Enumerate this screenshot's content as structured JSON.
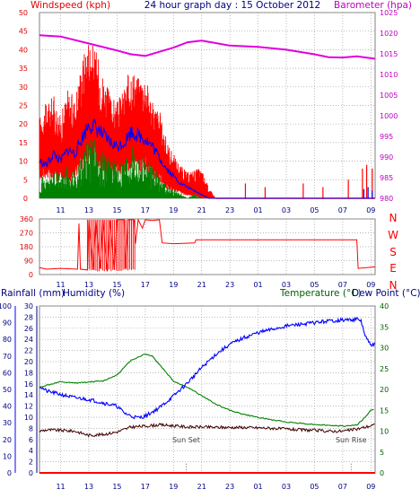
{
  "title": "24 hour graph day : 15 October 2012",
  "chart_data": [
    {
      "id": "wind",
      "type": "line",
      "left_label": "Windspeed (kph)",
      "right_label": "Barometer (hpa)",
      "colors": {
        "gust": "#ff0000",
        "wind": "#008000",
        "avg": "#0000ff",
        "baro": "#e000e0"
      },
      "y_left_range": [
        0,
        50
      ],
      "y_left_ticks": [
        "0",
        "5",
        "10",
        "15",
        "20",
        "25",
        "30",
        "35",
        "40",
        "45",
        "50"
      ],
      "y_right_range": [
        980,
        1025
      ],
      "y_right_ticks": [
        "980",
        "985",
        "990",
        "995",
        "1000",
        "1005",
        "1010",
        "1015",
        "1020",
        "1025"
      ],
      "x_ticks": [
        "11",
        "13",
        "15",
        "17",
        "19",
        "21",
        "23",
        "01",
        "03",
        "05",
        "07",
        "09"
      ],
      "x_range_hours": [
        9.5,
        33.3
      ],
      "gust_max": [
        [
          9.5,
          22
        ],
        [
          10,
          26
        ],
        [
          10.5,
          28
        ],
        [
          11,
          22
        ],
        [
          11.5,
          30
        ],
        [
          12,
          27
        ],
        [
          12.5,
          38
        ],
        [
          13,
          44
        ],
        [
          13.5,
          40
        ],
        [
          14,
          34
        ],
        [
          14.5,
          28
        ],
        [
          15,
          26
        ],
        [
          15.5,
          30
        ],
        [
          16,
          36
        ],
        [
          16.5,
          33
        ],
        [
          17,
          34
        ],
        [
          17.5,
          26
        ],
        [
          18,
          24
        ],
        [
          18.5,
          16
        ],
        [
          19,
          12
        ],
        [
          19.5,
          9
        ],
        [
          20,
          7
        ],
        [
          20.5,
          8
        ],
        [
          21,
          8
        ],
        [
          21.5,
          3
        ],
        [
          22,
          0
        ],
        [
          33.3,
          0
        ]
      ],
      "gust_min": [
        [
          9.5,
          8
        ],
        [
          10,
          9
        ],
        [
          10.5,
          7
        ],
        [
          11,
          8
        ],
        [
          11.5,
          6
        ],
        [
          12,
          9
        ],
        [
          12.5,
          12
        ],
        [
          13,
          16
        ],
        [
          13.5,
          14
        ],
        [
          14,
          11
        ],
        [
          14.5,
          10
        ],
        [
          15,
          9
        ],
        [
          15.5,
          10
        ],
        [
          16,
          13
        ],
        [
          16.5,
          11
        ],
        [
          17,
          12
        ],
        [
          17.5,
          9
        ],
        [
          18,
          7
        ],
        [
          18.5,
          4
        ],
        [
          19,
          3
        ],
        [
          19.5,
          2
        ],
        [
          20,
          1
        ],
        [
          20.5,
          1
        ],
        [
          21,
          0
        ],
        [
          22,
          0
        ],
        [
          33.3,
          0
        ]
      ],
      "avg_wind": [
        [
          9.5,
          10
        ],
        [
          10,
          9
        ],
        [
          10.5,
          12
        ],
        [
          11,
          10
        ],
        [
          11.5,
          13
        ],
        [
          12,
          12
        ],
        [
          12.5,
          16
        ],
        [
          13,
          20
        ],
        [
          13.5,
          19
        ],
        [
          14,
          17
        ],
        [
          14.5,
          15
        ],
        [
          15,
          14
        ],
        [
          15.5,
          15
        ],
        [
          16,
          18
        ],
        [
          16.5,
          17
        ],
        [
          17,
          16
        ],
        [
          17.5,
          14
        ],
        [
          18,
          11
        ],
        [
          18.5,
          8
        ],
        [
          19,
          6
        ],
        [
          19.5,
          4
        ],
        [
          20,
          3
        ],
        [
          20.5,
          2
        ],
        [
          21,
          1
        ],
        [
          21.5,
          0
        ],
        [
          22,
          0
        ],
        [
          33.3,
          0
        ]
      ],
      "wind": [
        [
          9.5,
          5
        ],
        [
          10,
          4
        ],
        [
          10.5,
          6
        ],
        [
          11,
          5
        ],
        [
          11.5,
          7
        ],
        [
          12,
          6
        ],
        [
          12.5,
          9
        ],
        [
          13,
          13
        ],
        [
          13.5,
          12
        ],
        [
          14,
          10
        ],
        [
          14.5,
          9
        ],
        [
          15,
          8
        ],
        [
          15.5,
          9
        ],
        [
          16,
          12
        ],
        [
          16.5,
          10
        ],
        [
          17,
          9
        ],
        [
          17.5,
          7
        ],
        [
          18,
          5
        ],
        [
          18.5,
          3
        ],
        [
          19,
          2
        ],
        [
          19.5,
          1
        ],
        [
          20,
          0
        ],
        [
          20.5,
          1
        ],
        [
          21,
          0
        ],
        [
          33.3,
          0
        ]
      ],
      "late_gusts": [
        [
          24.1,
          4
        ],
        [
          25.5,
          3
        ],
        [
          28.2,
          4
        ],
        [
          29.6,
          3
        ],
        [
          31.4,
          5
        ],
        [
          32.4,
          8
        ],
        [
          32.7,
          9
        ],
        [
          33.1,
          8
        ]
      ],
      "barometer": [
        [
          9.5,
          1019.5
        ],
        [
          11,
          1019.2
        ],
        [
          13,
          1017.5
        ],
        [
          15,
          1015.8
        ],
        [
          16,
          1014.9
        ],
        [
          17,
          1014.5
        ],
        [
          18,
          1015.5
        ],
        [
          19,
          1016.5
        ],
        [
          20,
          1017.8
        ],
        [
          21,
          1018.2
        ],
        [
          22,
          1017.6
        ],
        [
          23,
          1017.0
        ],
        [
          25,
          1016.7
        ],
        [
          27,
          1016.0
        ],
        [
          29,
          1014.9
        ],
        [
          30,
          1014.2
        ],
        [
          31,
          1014.1
        ],
        [
          32,
          1014.4
        ],
        [
          33.3,
          1013.8
        ]
      ]
    },
    {
      "id": "direction",
      "type": "line",
      "left_label": "",
      "right_label": "",
      "compass": [
        "N",
        "W",
        "S",
        "E",
        "N"
      ],
      "compass_color": "#ff0000",
      "y_range": [
        0,
        360
      ],
      "y_ticks": [
        "0",
        "90",
        "180",
        "270",
        "360"
      ],
      "x_ticks": [
        "11",
        "13",
        "15",
        "17",
        "19",
        "21",
        "23",
        "01",
        "03",
        "05",
        "07",
        "09"
      ],
      "color": "#ff0000",
      "values": [
        [
          9.5,
          45
        ],
        [
          10,
          35
        ],
        [
          11,
          40
        ],
        [
          12.2,
          35
        ],
        [
          12.3,
          330
        ],
        [
          12.4,
          35
        ],
        [
          12.9,
          30
        ],
        [
          13.0,
          350
        ],
        [
          13.3,
          30
        ],
        [
          13.5,
          350
        ],
        [
          13.8,
          40
        ],
        [
          14.0,
          355
        ],
        [
          14.3,
          20
        ],
        [
          14.5,
          350
        ],
        [
          14.8,
          30
        ],
        [
          15,
          355
        ],
        [
          15.5,
          355
        ],
        [
          15.6,
          40
        ],
        [
          15.8,
          355
        ],
        [
          16.2,
          355
        ],
        [
          16.3,
          200
        ],
        [
          16.5,
          355
        ],
        [
          16.8,
          300
        ],
        [
          17,
          355
        ],
        [
          17.5,
          350
        ],
        [
          18,
          355
        ],
        [
          18.2,
          205
        ],
        [
          19,
          200
        ],
        [
          20.5,
          205
        ],
        [
          20.6,
          225
        ],
        [
          32.0,
          225
        ],
        [
          32.1,
          40
        ],
        [
          33.3,
          50
        ]
      ]
    },
    {
      "id": "rain_hum_temp",
      "type": "line",
      "left_labels": [
        "Rainfall (mm)",
        "Humidity (%)"
      ],
      "right_labels": [
        "Temperature (°C)",
        "Dew Point (°C)"
      ],
      "colors": {
        "humidity": "#0000ff",
        "temperature": "#008000",
        "dewpoint": "#400000",
        "rain": "#ff0000"
      },
      "y_hum_range": [
        0,
        100
      ],
      "y_hum_ticks": [
        "0",
        "10",
        "20",
        "30",
        "40",
        "50",
        "60",
        "70",
        "80",
        "90",
        "100"
      ],
      "y_rain_range": [
        0,
        30
      ],
      "y_rain_ticks": [
        "0",
        "2",
        "4",
        "6",
        "8",
        "10",
        "12",
        "14",
        "16",
        "18",
        "20",
        "22",
        "24",
        "26",
        "28",
        "30"
      ],
      "y_temp_range": [
        0,
        40
      ],
      "y_temp_ticks": [
        "0",
        "5",
        "10",
        "15",
        "20",
        "25",
        "30",
        "35",
        "40"
      ],
      "x_ticks": [
        "11",
        "13",
        "15",
        "17",
        "19",
        "21",
        "23",
        "01",
        "03",
        "05",
        "07",
        "09"
      ],
      "annotations": [
        {
          "text": "Sun Set",
          "hour": 19.9
        },
        {
          "text": "Sun Rise",
          "hour": 31.6
        }
      ],
      "humidity": [
        [
          9.5,
          52
        ],
        [
          10,
          49
        ],
        [
          11,
          47
        ],
        [
          12,
          45
        ],
        [
          13,
          44
        ],
        [
          14,
          42
        ],
        [
          15,
          40
        ],
        [
          15.5,
          36
        ],
        [
          16,
          34
        ],
        [
          16.5,
          33
        ],
        [
          17,
          34
        ],
        [
          18,
          39
        ],
        [
          19,
          46
        ],
        [
          20,
          54
        ],
        [
          21,
          63
        ],
        [
          22,
          71
        ],
        [
          23,
          77
        ],
        [
          24,
          81
        ],
        [
          25,
          84
        ],
        [
          26,
          86
        ],
        [
          27,
          88
        ],
        [
          28,
          89
        ],
        [
          29,
          90
        ],
        [
          30,
          91
        ],
        [
          31,
          91.5
        ],
        [
          32,
          92
        ],
        [
          32.3,
          91
        ],
        [
          32.6,
          82
        ],
        [
          33,
          76
        ],
        [
          33.3,
          78
        ]
      ],
      "temperature": [
        [
          9.5,
          20.5
        ],
        [
          10,
          21.0
        ],
        [
          11,
          21.8
        ],
        [
          12,
          21.5
        ],
        [
          13,
          21.8
        ],
        [
          14,
          22.0
        ],
        [
          15,
          23.5
        ],
        [
          16,
          27.0
        ],
        [
          17,
          28.5
        ],
        [
          17.5,
          28.0
        ],
        [
          18,
          26.0
        ],
        [
          18.5,
          24.0
        ],
        [
          19,
          22.0
        ],
        [
          20,
          20.5
        ],
        [
          21,
          18.5
        ],
        [
          22,
          16.5
        ],
        [
          23,
          15.0
        ],
        [
          24,
          14.0
        ],
        [
          25,
          13.3
        ],
        [
          26,
          12.7
        ],
        [
          27,
          12.2
        ],
        [
          28,
          11.9
        ],
        [
          29,
          11.6
        ],
        [
          30,
          11.4
        ],
        [
          31,
          11.2
        ],
        [
          32,
          11.5
        ],
        [
          32.5,
          13.0
        ],
        [
          33,
          15.0
        ],
        [
          33.3,
          15.5
        ]
      ],
      "dewpoint": [
        [
          9.5,
          10.0
        ],
        [
          10,
          10.3
        ],
        [
          11,
          10.2
        ],
        [
          12,
          10.0
        ],
        [
          13,
          9.0
        ],
        [
          14,
          9.2
        ],
        [
          15,
          9.8
        ],
        [
          16,
          11.0
        ],
        [
          17,
          11.2
        ],
        [
          18,
          11.5
        ],
        [
          19,
          11.3
        ],
        [
          20,
          11.0
        ],
        [
          21,
          11.0
        ],
        [
          22,
          10.9
        ],
        [
          23,
          10.9
        ],
        [
          24,
          10.9
        ],
        [
          25,
          10.8
        ],
        [
          26,
          10.7
        ],
        [
          27,
          10.5
        ],
        [
          28,
          10.3
        ],
        [
          29,
          10.2
        ],
        [
          30,
          10.0
        ],
        [
          31,
          10.0
        ],
        [
          32,
          10.5
        ],
        [
          33,
          11.3
        ],
        [
          33.3,
          11.5
        ]
      ],
      "rain": [
        [
          9.5,
          0
        ],
        [
          33.3,
          0
        ]
      ]
    }
  ]
}
